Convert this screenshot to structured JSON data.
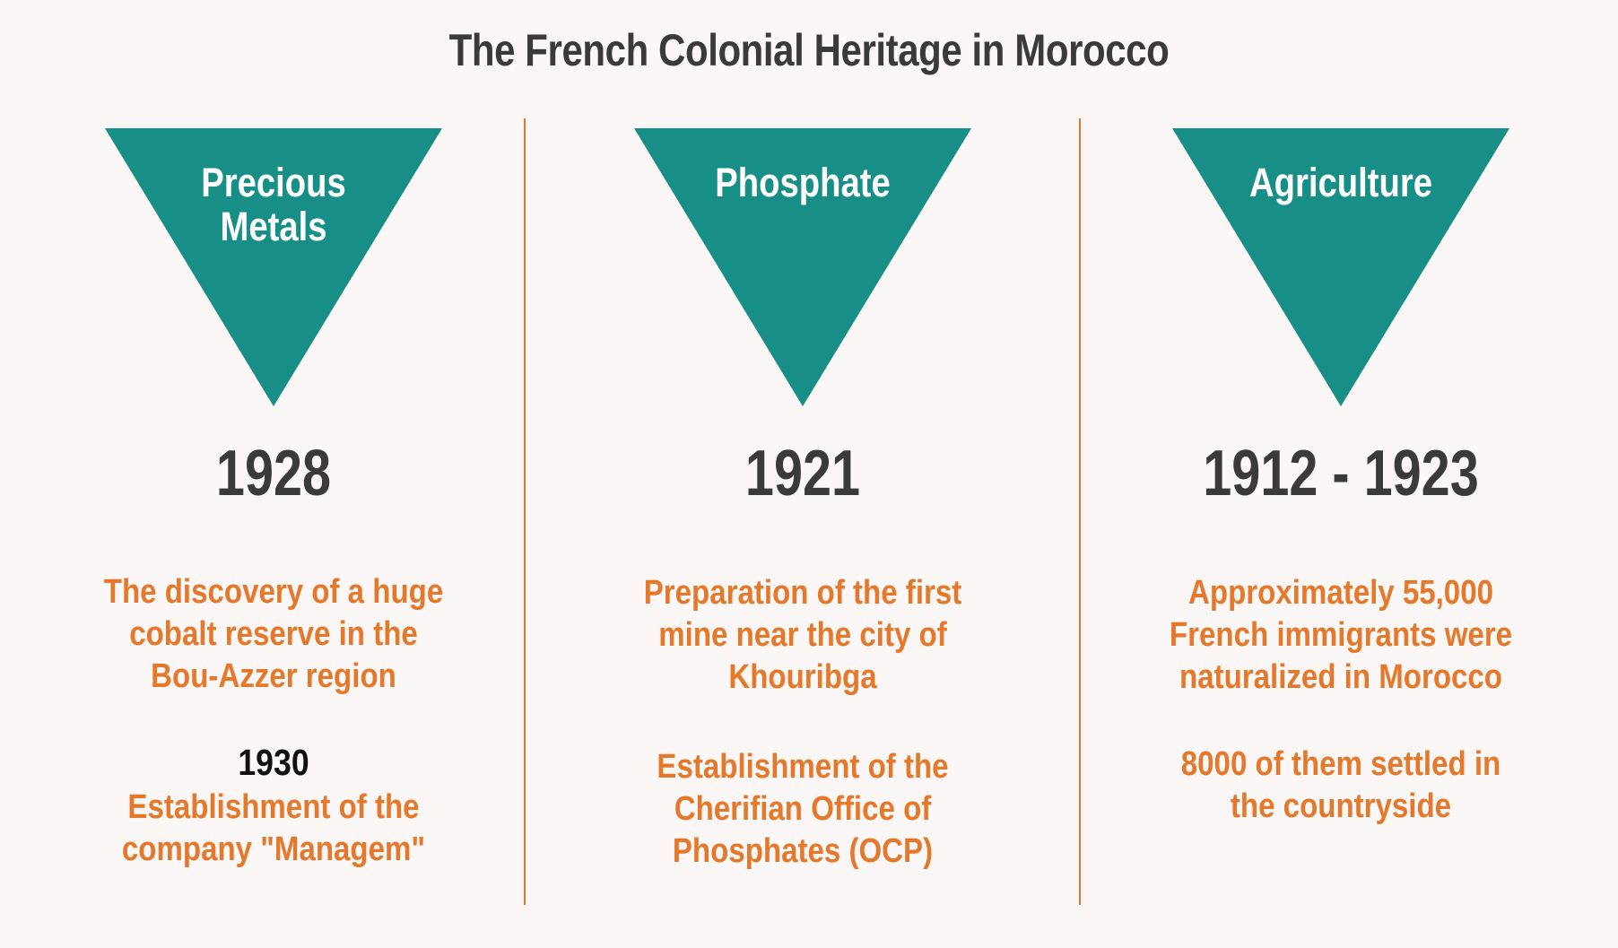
{
  "title": "The French Colonial Heritage in Morocco",
  "colors": {
    "teal": "#178F87",
    "orange": "#E5782A",
    "dark": "#3A3A3A",
    "black": "#111111",
    "background": "#FBF7F6",
    "divider": "#E5782A"
  },
  "columns": [
    {
      "category": "Precious\nMetals",
      "year": "1928",
      "event1": "The discovery of a huge\ncobalt reserve in the\nBou-Azzer region",
      "event2_year": "1930",
      "event2": "Establishment of the\ncompany \"Managem\""
    },
    {
      "category": "Phosphate",
      "year": "1921",
      "event1": "Preparation of the first\nmine near the city of\nKhouribga",
      "event2": "Establishment of the\nCherifian Office of\nPhosphates (OCP)"
    },
    {
      "category": "Agriculture",
      "year": "1912 - 1923",
      "event1": "Approximately 55,000\nFrench immigrants were\nnaturalized in Morocco",
      "event2": "8000 of them settled in\nthe countryside"
    }
  ]
}
